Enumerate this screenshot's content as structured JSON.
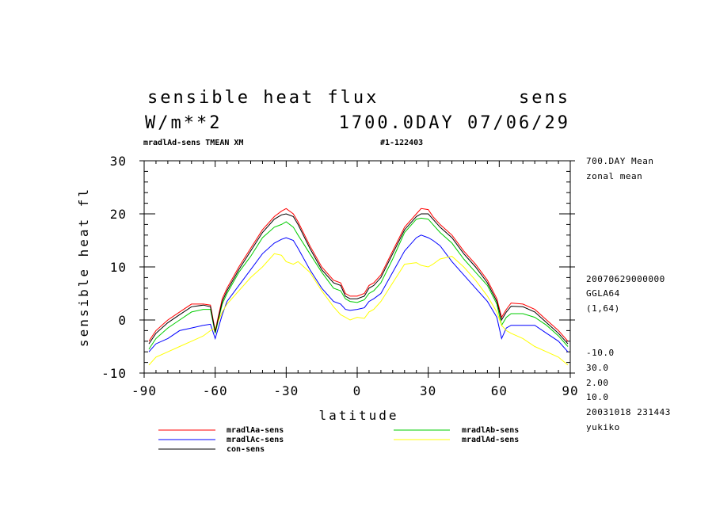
{
  "header": {
    "title_left": "sensible heat flux",
    "title_right": "sens",
    "units": "W/m**2",
    "date_line": "1700.0DAY 07/06/29",
    "subtitle_left": "mradlAd-sens TMEAN XM",
    "subtitle_right": "#1-122403"
  },
  "side_info": {
    "top": [
      "700.DAY Mean",
      "zonal mean"
    ],
    "mid": [
      "20070629000000",
      "GGLA64",
      "(1,64)"
    ],
    "bottom": [
      "-10.0",
      "30.0",
      "2.00",
      "10.0",
      "20031018 231443",
      "yukiko"
    ]
  },
  "chart_data": {
    "type": "line",
    "xlabel": "latitude",
    "ylabel": "sensible heat fl",
    "xlim": [
      -90,
      90
    ],
    "ylim": [
      -10,
      30
    ],
    "xticks": [
      -90,
      -60,
      -30,
      0,
      30,
      60,
      90
    ],
    "xtick_labels": [
      "-90",
      "-60",
      "-30",
      "0",
      "30",
      "60",
      "90"
    ],
    "yticks": [
      -10,
      0,
      10,
      20,
      30
    ],
    "ytick_labels": [
      "-10",
      "0",
      "10",
      "20",
      "30"
    ],
    "x": [
      -88,
      -85,
      -80,
      -75,
      -70,
      -65,
      -62,
      -60,
      -57,
      -55,
      -50,
      -45,
      -40,
      -35,
      -32,
      -30,
      -27,
      -25,
      -20,
      -15,
      -10,
      -7,
      -5,
      -3,
      0,
      3,
      5,
      7,
      10,
      15,
      20,
      25,
      27,
      30,
      32,
      35,
      40,
      45,
      50,
      55,
      59,
      61,
      63,
      65,
      70,
      75,
      80,
      85,
      89
    ],
    "series": [
      {
        "name": "mradlAa-sens",
        "color": "#ff0000",
        "values": [
          -4.0,
          -2.0,
          0.0,
          1.5,
          3.0,
          3.0,
          2.8,
          -2.0,
          4.0,
          6.0,
          10.0,
          13.5,
          17.0,
          19.5,
          20.5,
          21.0,
          20.0,
          18.5,
          14.0,
          10.0,
          7.5,
          7.0,
          5.0,
          4.5,
          4.5,
          5.0,
          6.5,
          7.0,
          8.5,
          13.0,
          17.5,
          20.0,
          21.0,
          20.8,
          19.5,
          18.0,
          16.0,
          13.0,
          10.5,
          7.5,
          4.0,
          0.5,
          2.0,
          3.2,
          3.0,
          2.0,
          0.0,
          -2.0,
          -4.0
        ]
      },
      {
        "name": "mradlAb-sens",
        "color": "#00cc00",
        "values": [
          -5.5,
          -3.5,
          -1.5,
          0.0,
          1.5,
          2.0,
          2.0,
          -2.5,
          3.0,
          5.0,
          9.0,
          12.0,
          15.5,
          17.5,
          18.0,
          18.5,
          17.5,
          16.0,
          12.5,
          9.0,
          6.0,
          5.5,
          4.0,
          3.5,
          3.3,
          3.8,
          5.0,
          5.5,
          7.0,
          11.5,
          16.5,
          19.0,
          19.2,
          19.0,
          18.0,
          16.5,
          14.5,
          11.5,
          9.0,
          6.5,
          3.0,
          -1.0,
          0.5,
          1.2,
          1.2,
          0.5,
          -1.0,
          -3.0,
          -5.0
        ]
      },
      {
        "name": "mradlAc-sens",
        "color": "#0000ff",
        "values": [
          -6.0,
          -4.5,
          -3.5,
          -2.0,
          -1.5,
          -1.0,
          -0.8,
          -3.5,
          1.0,
          3.5,
          6.5,
          9.5,
          12.5,
          14.5,
          15.2,
          15.5,
          15.0,
          13.5,
          9.5,
          6.0,
          3.5,
          3.0,
          2.0,
          1.8,
          2.0,
          2.3,
          3.5,
          4.0,
          5.0,
          9.0,
          13.0,
          15.5,
          16.0,
          15.5,
          15.0,
          14.0,
          11.0,
          8.5,
          6.0,
          3.5,
          0.5,
          -3.5,
          -1.5,
          -1.0,
          -1.0,
          -1.0,
          -2.5,
          -4.0,
          -6.0
        ]
      },
      {
        "name": "mradlAd-sens",
        "color": "#ffff00",
        "values": [
          -8.5,
          -7.0,
          -6.0,
          -5.0,
          -4.0,
          -3.0,
          -2.0,
          -1.5,
          1.5,
          3.0,
          5.5,
          8.0,
          10.0,
          12.5,
          12.2,
          11.0,
          10.5,
          11.0,
          9.0,
          5.5,
          2.5,
          1.0,
          0.5,
          0.0,
          0.5,
          0.3,
          1.5,
          2.0,
          3.5,
          7.0,
          10.5,
          10.8,
          10.3,
          10.0,
          10.5,
          11.5,
          12.0,
          10.0,
          7.5,
          4.5,
          1.5,
          -1.0,
          -2.0,
          -2.5,
          -3.5,
          -5.0,
          -6.0,
          -7.0,
          -8.5
        ]
      },
      {
        "name": "con-sens",
        "color": "#000000",
        "values": [
          -4.5,
          -2.5,
          -0.5,
          1.0,
          2.5,
          2.8,
          2.5,
          -2.3,
          3.5,
          5.5,
          9.5,
          13.0,
          16.5,
          19.0,
          19.8,
          20.0,
          19.5,
          18.0,
          13.5,
          9.5,
          7.0,
          6.5,
          4.5,
          4.0,
          4.0,
          4.5,
          6.0,
          6.5,
          8.0,
          12.5,
          17.0,
          19.5,
          20.0,
          20.0,
          19.0,
          17.5,
          15.5,
          12.5,
          10.0,
          7.0,
          3.5,
          0.0,
          1.5,
          2.6,
          2.5,
          1.5,
          -0.5,
          -2.5,
          -4.5
        ]
      }
    ]
  }
}
